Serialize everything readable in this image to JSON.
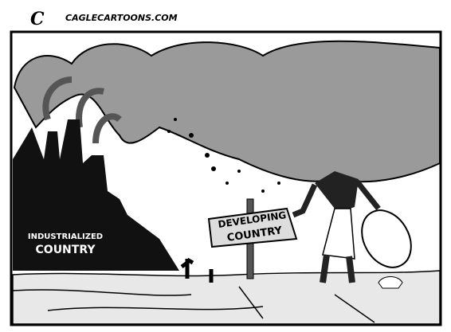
{
  "credit": "CAGLECARTOONS.COM",
  "industrialized_label": [
    "INDUSTRIALIZED",
    "COUNTRY"
  ],
  "developing_sign": [
    "DEVELOPING",
    "COUNTRY"
  ]
}
